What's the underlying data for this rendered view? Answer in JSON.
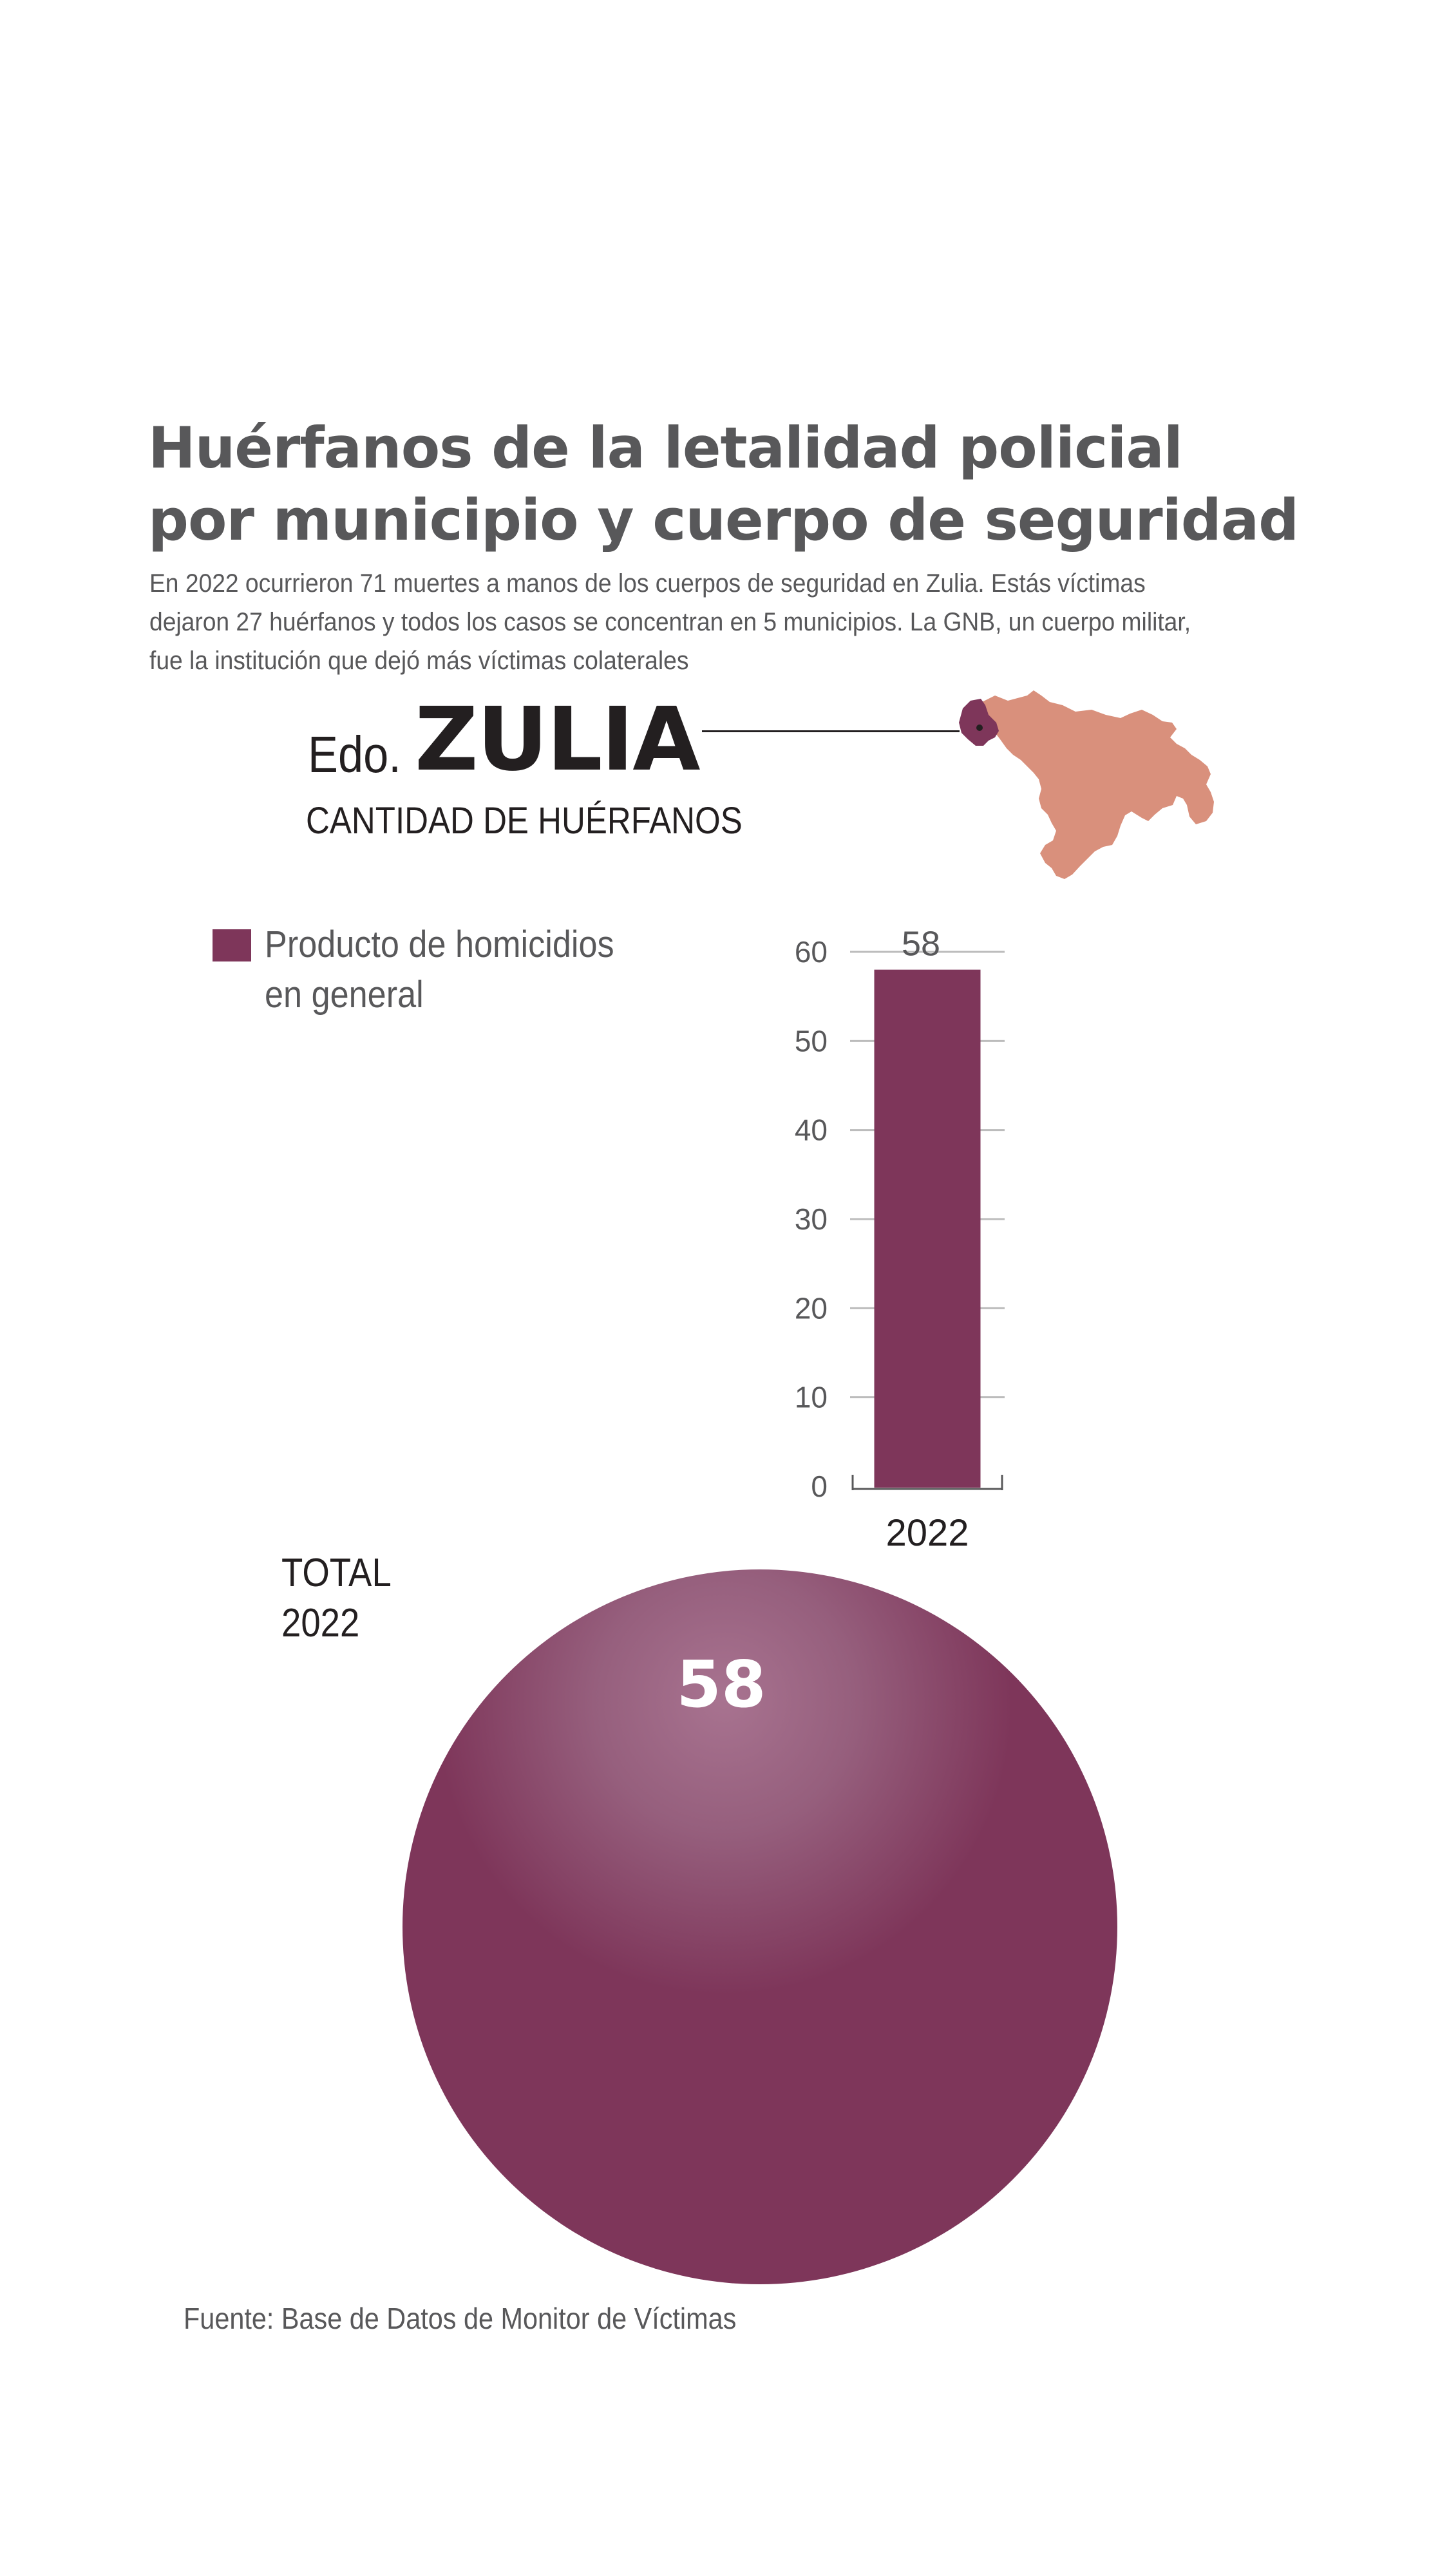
{
  "header": {
    "title_lines": [
      "Huérfanos de la letalidad policial",
      "por municipio y cuerpo de seguridad"
    ],
    "subtitle_lines": [
      "En 2022 ocurrieron 71 muertes a manos de los cuerpos de seguridad en Zulia. Estás víctimas",
      "dejaron 27 huérfanos y todos los casos se concentran en 5 municipios. La GNB, un cuerpo militar,",
      "fue la institución que dejó más víctimas colaterales"
    ]
  },
  "state": {
    "prefix": "Edo.",
    "name": "ZULIA",
    "chart_subtitle": "CANTIDAD DE HUÉRFANOS"
  },
  "map": {
    "icon": "venezuela-map",
    "country_color": "#d9907c",
    "highlight_color": "#7e365a"
  },
  "legend": {
    "label_lines": [
      "Producto de homicidios",
      "en general"
    ],
    "color": "#7e365a"
  },
  "total": {
    "label_lines": [
      "TOTAL",
      "2022"
    ],
    "value": "58",
    "color": "#7e365a"
  },
  "source": "Fuente: Base de Datos de Monitor de Víctimas",
  "chart_data": {
    "type": "bar",
    "categories": [
      "2022"
    ],
    "series": [
      {
        "values": [
          58
        ],
        "color": "#7e365a"
      }
    ],
    "data_labels": [
      "58"
    ],
    "ylim": [
      0,
      60
    ],
    "yticks": [
      0,
      10,
      20,
      30,
      40,
      50,
      60
    ],
    "grid": true,
    "xlabel": "",
    "ylabel": ""
  }
}
